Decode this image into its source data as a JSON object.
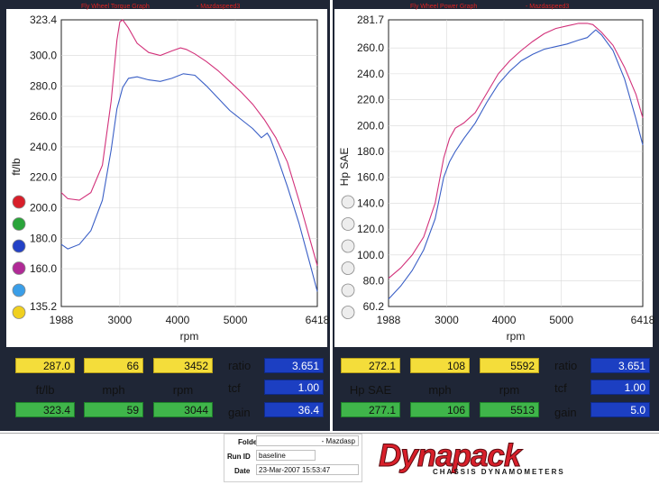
{
  "colors": {
    "run1": "#d2317a",
    "run2": "#3a5fc6",
    "panel": "#1f2636"
  },
  "torque": {
    "title": "Fly Wheel Torque Graph",
    "title_suffix": "- Mazdaspeed3",
    "ylabel": "ft/lb",
    "xlabel": "rpm",
    "y_ticks": [
      "323.4",
      "300.0",
      "280.0",
      "260.0",
      "240.0",
      "220.0",
      "200.0",
      "180.0",
      "160.0",
      "135.2"
    ],
    "x_ticks": [
      "1988",
      "3000",
      "4000",
      "5000",
      "6418"
    ]
  },
  "power": {
    "title": "Fly Wheel Power Graph",
    "title_suffix": "- Mazdaspeed3",
    "ylabel": "Hp SAE",
    "xlabel": "rpm",
    "y_ticks": [
      "281.7",
      "260.0",
      "240.0",
      "220.0",
      "200.0",
      "180.0",
      "160.0",
      "140.0",
      "120.0",
      "100.0",
      "80.0",
      "60.2"
    ],
    "x_ticks": [
      "1988",
      "3000",
      "4000",
      "5000",
      "6418"
    ]
  },
  "chart_data": [
    {
      "type": "line",
      "title": "Fly Wheel Torque Graph - Mazdaspeed3",
      "xlabel": "rpm",
      "ylabel": "ft/lb",
      "xlim": [
        1988,
        6418
      ],
      "ylim": [
        135.2,
        323.4
      ],
      "grid": true,
      "series": [
        {
          "color": "#d2317a",
          "x": [
            1988,
            2100,
            2300,
            2500,
            2700,
            2850,
            2950,
            3000,
            3050,
            3150,
            3300,
            3500,
            3700,
            3900,
            4050,
            4150,
            4300,
            4500,
            4700,
            4900,
            5100,
            5300,
            5500,
            5700,
            5900,
            6100,
            6300,
            6418
          ],
          "y": [
            210,
            206,
            205,
            210,
            228,
            270,
            310,
            322,
            323.4,
            318,
            308,
            302,
            300,
            303,
            305,
            304,
            301,
            296,
            290,
            283,
            276,
            268,
            258,
            246,
            230,
            205,
            178,
            162
          ]
        },
        {
          "color": "#3a5fc6",
          "x": [
            1988,
            2100,
            2300,
            2500,
            2700,
            2850,
            2950,
            3050,
            3150,
            3300,
            3500,
            3700,
            3900,
            4100,
            4300,
            4500,
            4700,
            4900,
            5100,
            5300,
            5450,
            5550,
            5600,
            5700,
            5900,
            6100,
            6300,
            6418
          ],
          "y": [
            176,
            173,
            176,
            185,
            205,
            238,
            265,
            279,
            285,
            286,
            284,
            283,
            285,
            288,
            287,
            280,
            272,
            264,
            258,
            252,
            246,
            249,
            246,
            236,
            214,
            190,
            162,
            145
          ]
        }
      ]
    },
    {
      "type": "line",
      "title": "Fly Wheel Power Graph - Mazdaspeed3",
      "xlabel": "rpm",
      "ylabel": "Hp SAE",
      "xlim": [
        1988,
        6418
      ],
      "ylim": [
        60.2,
        281.7
      ],
      "grid": true,
      "series": [
        {
          "color": "#d2317a",
          "x": [
            1988,
            2200,
            2400,
            2600,
            2800,
            2950,
            3050,
            3150,
            3300,
            3500,
            3700,
            3900,
            4100,
            4300,
            4500,
            4700,
            4900,
            5100,
            5300,
            5450,
            5550,
            5700,
            5900,
            6100,
            6300,
            6418
          ],
          "y": [
            82,
            90,
            100,
            114,
            140,
            175,
            190,
            198,
            202,
            210,
            225,
            240,
            250,
            258,
            265,
            271,
            275,
            277,
            279,
            279,
            278,
            272,
            262,
            245,
            224,
            206
          ]
        },
        {
          "color": "#3a5fc6",
          "x": [
            1988,
            2200,
            2400,
            2600,
            2800,
            2950,
            3050,
            3150,
            3300,
            3500,
            3700,
            3900,
            4100,
            4300,
            4500,
            4700,
            4900,
            5100,
            5300,
            5450,
            5550,
            5600,
            5700,
            5900,
            6100,
            6300,
            6418
          ],
          "y": [
            66,
            76,
            88,
            104,
            128,
            160,
            172,
            180,
            190,
            202,
            218,
            232,
            242,
            250,
            255,
            259,
            261,
            263,
            266,
            268,
            272,
            274,
            270,
            258,
            236,
            205,
            185
          ]
        }
      ]
    }
  ],
  "left_readout": {
    "run1": {
      "value": "287.0",
      "speed": "66",
      "rpm": "3452"
    },
    "units": {
      "value": "ft/lb",
      "speed": "mph",
      "rpm": "rpm"
    },
    "run2": {
      "value": "323.4",
      "speed": "59",
      "rpm": "3044"
    },
    "ratio_label": "ratio",
    "ratio": "3.651",
    "tcf_label": "tcf",
    "tcf": "1.00",
    "gain_label": "gain",
    "gain": "36.4"
  },
  "right_readout": {
    "run1": {
      "value": "272.1",
      "speed": "108",
      "rpm": "5592"
    },
    "units": {
      "value": "Hp SAE",
      "speed": "mph",
      "rpm": "rpm"
    },
    "run2": {
      "value": "277.1",
      "speed": "106",
      "rpm": "5513"
    },
    "ratio_label": "ratio",
    "ratio": "3.651",
    "tcf_label": "tcf",
    "tcf": "1.00",
    "gain_label": "gain",
    "gain": "5.0"
  },
  "left_markers": [
    "#d81f2a",
    "#2aa43a",
    "#2341c6",
    "#b02a96",
    "#3a9ee8",
    "#f0d020"
  ],
  "right_markers": [
    "#ededed",
    "#ededed",
    "#ededed",
    "#ededed",
    "#ededed",
    "#ededed"
  ],
  "footer": {
    "folder_label": "Folder",
    "folder_value": "- Mazdasp",
    "runid_label": "Run ID",
    "runid_value": "baseline",
    "date_label": "Date",
    "date_value": "23-Mar-2007   15:53:47",
    "logo": "Dynapack",
    "logo_sub": "CHASSIS   DYNAMOMETERS"
  }
}
